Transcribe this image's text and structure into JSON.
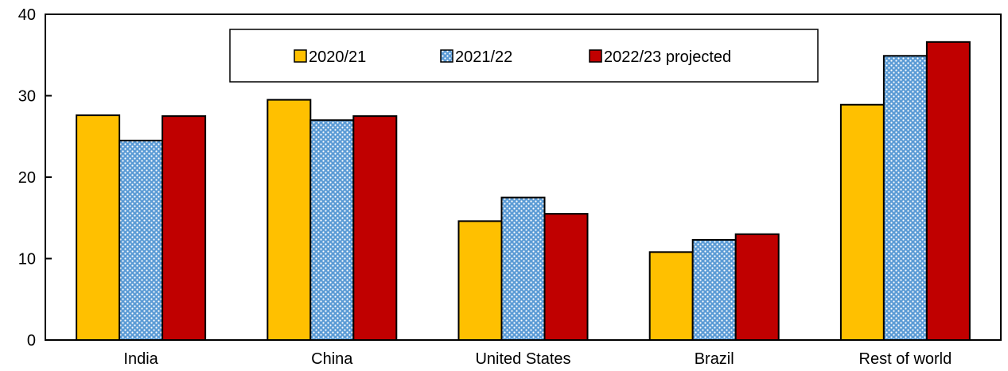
{
  "chart_data": {
    "type": "bar",
    "categories": [
      "India",
      "China",
      "United States",
      "Brazil",
      "Rest of world"
    ],
    "series": [
      {
        "name": "2020/21",
        "values": [
          27.6,
          29.5,
          14.6,
          10.8,
          28.9
        ],
        "color": "#FFC000",
        "pattern": "solid"
      },
      {
        "name": "2021/22",
        "values": [
          24.5,
          27.0,
          17.5,
          12.3,
          34.9
        ],
        "color": "#5B9BD5",
        "pattern": "dotted"
      },
      {
        "name": "2022/23 projected",
        "values": [
          27.5,
          27.5,
          15.5,
          13.0,
          36.6
        ],
        "color": "#C00000",
        "pattern": "solid"
      }
    ],
    "ylim": [
      0,
      40
    ],
    "yticks": [
      0,
      10,
      20,
      30,
      40
    ],
    "grid": false,
    "legend_placement": "top-center"
  }
}
